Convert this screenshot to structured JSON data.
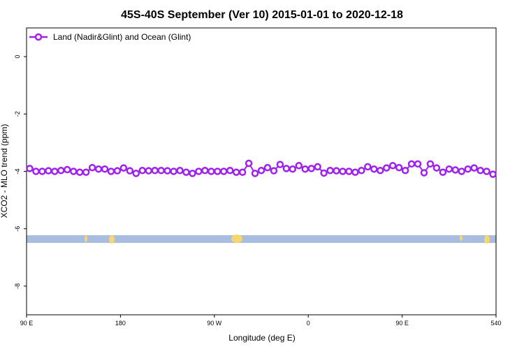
{
  "chart_data": {
    "type": "line",
    "title": "45S-40S September (Ver 10)   2015-01-01 to 2020-12-18",
    "x_label": "Longitude (deg E)",
    "y_label": "XCO2 - MLO trend (ppm)",
    "xlim": [
      90,
      540
    ],
    "ylim": [
      -9,
      1
    ],
    "xticks": [
      {
        "value": 90,
        "label": "90 E"
      },
      180,
      {
        "value": 270,
        "label": "90 W"
      },
      {
        "value": 360,
        "label": "0"
      },
      {
        "value": 450,
        "label": "90 E"
      },
      540
    ],
    "yticks": [
      0,
      -2,
      -4,
      -6,
      -8
    ],
    "legend": "top-left",
    "x": [
      93,
      99,
      105,
      111,
      117,
      123,
      129,
      135,
      141,
      147,
      153,
      159,
      165,
      171,
      177,
      183,
      189,
      195,
      201,
      207,
      213,
      219,
      225,
      231,
      237,
      243,
      249,
      255,
      261,
      267,
      273,
      279,
      285,
      291,
      297,
      303,
      309,
      315,
      321,
      327,
      333,
      339,
      345,
      351,
      357,
      363,
      369,
      375,
      381,
      387,
      393,
      399,
      405,
      411,
      417,
      423,
      429,
      435,
      441,
      447,
      453,
      459,
      465,
      471,
      477,
      483,
      489,
      495,
      501,
      507,
      513,
      519,
      525,
      531,
      537
    ],
    "series": [
      {
        "name": "Land (Nadir&Glint) and Ocean (Glint)",
        "color": "#a020f0",
        "values": [
          -3.9,
          -4.0,
          -4.0,
          -3.98,
          -4.0,
          -3.97,
          -3.94,
          -4.0,
          -4.03,
          -4.03,
          -3.87,
          -3.92,
          -3.92,
          -4.0,
          -3.98,
          -3.88,
          -3.98,
          -4.07,
          -3.97,
          -3.98,
          -3.97,
          -3.97,
          -3.98,
          -4.0,
          -3.97,
          -4.03,
          -4.07,
          -4.0,
          -3.97,
          -4.0,
          -4.0,
          -4.0,
          -3.97,
          -4.03,
          -4.03,
          -3.72,
          -4.07,
          -3.97,
          -3.87,
          -3.98,
          -3.76,
          -3.9,
          -3.92,
          -3.8,
          -3.92,
          -3.9,
          -3.84,
          -4.06,
          -3.97,
          -3.98,
          -4.0,
          -4.0,
          -4.03,
          -3.97,
          -3.84,
          -3.92,
          -3.97,
          -3.88,
          -3.8,
          -3.87,
          -3.97,
          -3.74,
          -3.74,
          -4.05,
          -3.74,
          -3.88,
          -4.03,
          -3.92,
          -3.95,
          -4.0,
          -3.92,
          -3.88,
          -3.97,
          -4.0,
          -4.1
        ]
      }
    ]
  }
}
